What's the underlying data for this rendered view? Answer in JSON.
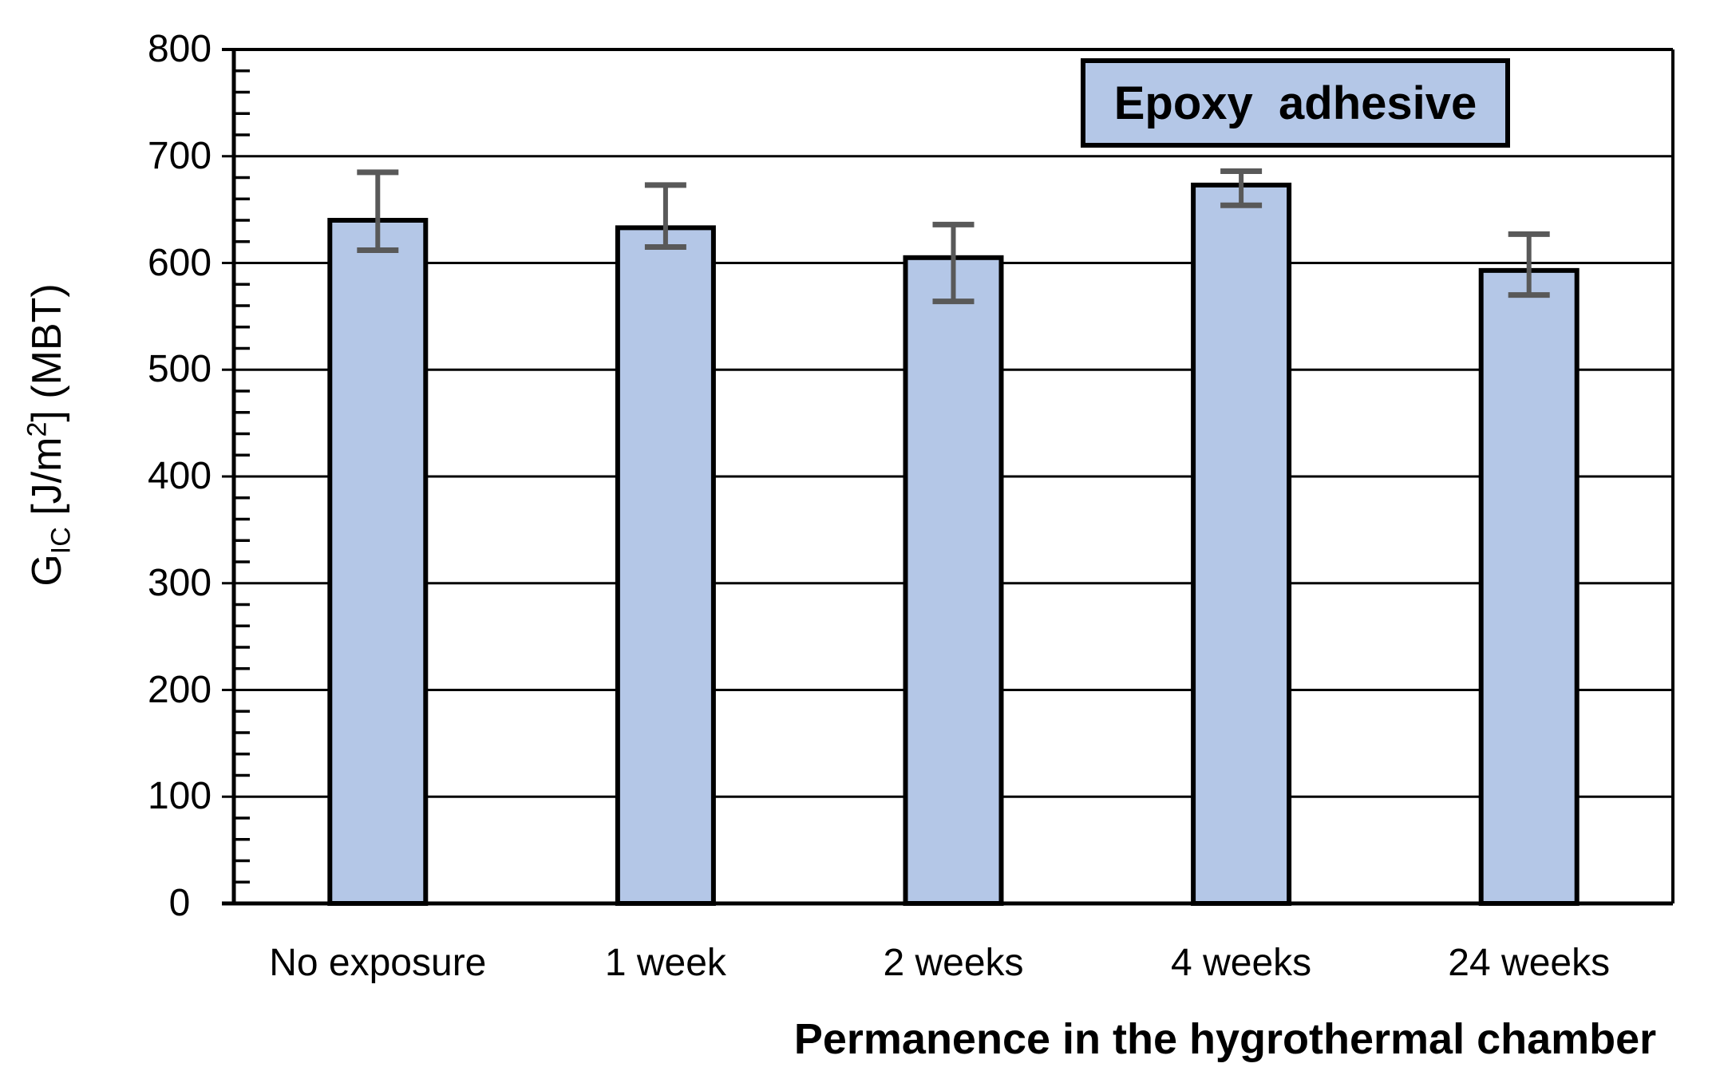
{
  "chart_data": {
    "type": "bar",
    "title": "",
    "legend": {
      "label": "Epoxy  adhesive",
      "position": "top-right"
    },
    "xlabel": "Permanence in the hygrothermal chamber",
    "ylabel_plain": "GIC [J/m2] (MBT)",
    "ylabel_parts": {
      "base": "G",
      "subscript": "IC",
      "unit_pre": " [J/m",
      "superscript": "2",
      "unit_post": "] (MBT)"
    },
    "categories": [
      "No exposure",
      "1 week",
      "2 weeks",
      "4 weeks",
      "24 weeks"
    ],
    "values": [
      640,
      633,
      605,
      673,
      593
    ],
    "error_low": [
      612,
      615,
      564,
      654,
      570
    ],
    "error_high": [
      685,
      673,
      636,
      686,
      627
    ],
    "ylim": [
      0,
      800
    ],
    "y_major_step": 100,
    "y_minor_step": 20,
    "y_tick_labels": [
      "0",
      "100",
      "200",
      "300",
      "400",
      "500",
      "600",
      "700",
      "800"
    ],
    "grid": "horizontal-major",
    "legend_fill": "#B4C7E7",
    "colors": {
      "bar_fill": "#B4C7E7",
      "bar_border": "#000000",
      "error_bar": "#595959",
      "grid": "#000000",
      "axis": "#000000",
      "text": "#000000",
      "background": "#FFFFFF"
    }
  }
}
